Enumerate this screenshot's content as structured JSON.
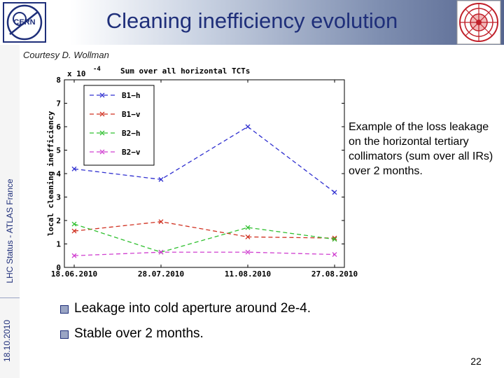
{
  "slide": {
    "title": "Cleaning inefficiency evolution",
    "courtesy": "Courtesy D. Wollman",
    "side_label": "LHC Status - ATLAS France",
    "side_date": "18.10.2010",
    "description": "Example of the loss leakage on the horizontal tertiary collimators (sum over all IRs) over 2 months.",
    "bullets": [
      "Leakage into cold aperture around 2e-4.",
      "Stable over 2 months."
    ],
    "page_number": "22"
  },
  "chart_data": {
    "type": "line",
    "title": "Sum over all horizontal TCTs",
    "ylabel": "local cleaning inefficiency",
    "scale_label": "x 10",
    "scale_exponent": "-4",
    "categories": [
      "18.06.2010",
      "28.07.2010",
      "11.08.2010",
      "27.08.2010"
    ],
    "ylim": [
      0,
      8
    ],
    "yticks": [
      "0",
      "1",
      "2",
      "3",
      "4",
      "5",
      "6",
      "7",
      "8"
    ],
    "legend_position": "top-left",
    "grid": false,
    "series": [
      {
        "name": "B1−h",
        "color": "#3030d0",
        "values": [
          4.2,
          3.75,
          6.0,
          3.2
        ]
      },
      {
        "name": "B1−v",
        "color": "#d03020",
        "values": [
          1.55,
          1.95,
          1.3,
          1.25
        ]
      },
      {
        "name": "B2−h",
        "color": "#30c030",
        "values": [
          1.85,
          0.65,
          1.7,
          1.2
        ]
      },
      {
        "name": "B2−v",
        "color": "#d040d0",
        "values": [
          0.5,
          0.65,
          0.65,
          0.55
        ]
      }
    ]
  }
}
